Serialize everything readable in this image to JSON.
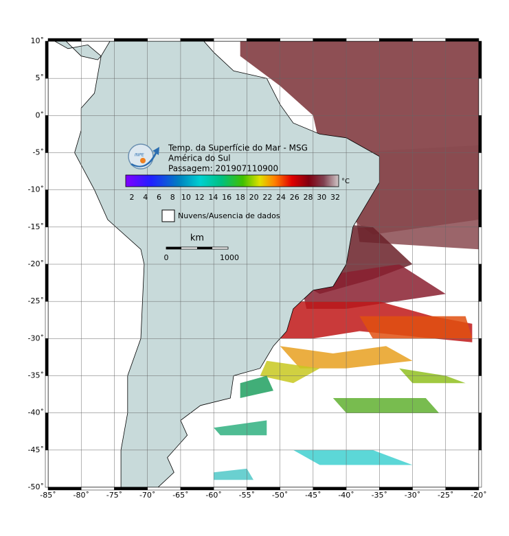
{
  "header": {
    "title": "Temp. da Superfície do Mar - MSG",
    "region": "América do Sul",
    "pass": "Passagem: 201907110900"
  },
  "logo": "INPE",
  "colorbar": {
    "ticks": [
      2,
      4,
      6,
      8,
      10,
      12,
      14,
      16,
      18,
      20,
      22,
      24,
      26,
      28,
      30,
      32
    ],
    "unit": "°C"
  },
  "legend": "Nuvens/Ausencia de dados",
  "scale": {
    "unit": "km",
    "start": 0,
    "end": 1000
  },
  "axes": {
    "lat": [
      "10˚",
      "5˚",
      "0˚",
      "-5˚",
      "-10˚",
      "-15˚",
      "-20˚",
      "-25˚",
      "-30˚",
      "-35˚",
      "-40˚",
      "-45˚",
      "-50˚"
    ],
    "lon": [
      "-85˚",
      "-80˚",
      "-75˚",
      "-70˚",
      "-65˚",
      "-60˚",
      "-55˚",
      "-50˚",
      "-45˚",
      "-40˚",
      "-35˚",
      "-30˚",
      "-25˚",
      "-20˚"
    ]
  }
}
